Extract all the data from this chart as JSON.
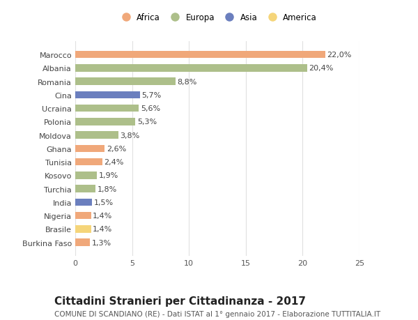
{
  "countries": [
    "Burkina Faso",
    "Brasile",
    "Nigeria",
    "India",
    "Turchia",
    "Kosovo",
    "Tunisia",
    "Ghana",
    "Moldova",
    "Polonia",
    "Ucraina",
    "Cina",
    "Romania",
    "Albania",
    "Marocco"
  ],
  "values": [
    1.3,
    1.4,
    1.4,
    1.5,
    1.8,
    1.9,
    2.4,
    2.6,
    3.8,
    5.3,
    5.6,
    5.7,
    8.8,
    20.4,
    22.0
  ],
  "labels": [
    "1,3%",
    "1,4%",
    "1,4%",
    "1,5%",
    "1,8%",
    "1,9%",
    "2,4%",
    "2,6%",
    "3,8%",
    "5,3%",
    "5,6%",
    "5,7%",
    "8,8%",
    "20,4%",
    "22,0%"
  ],
  "continents": [
    "Africa",
    "America",
    "Africa",
    "Asia",
    "Europa",
    "Europa",
    "Africa",
    "Africa",
    "Europa",
    "Europa",
    "Europa",
    "Asia",
    "Europa",
    "Europa",
    "Africa"
  ],
  "colors": {
    "Africa": "#F0A87A",
    "Europa": "#ADBF8A",
    "Asia": "#6B7FBE",
    "America": "#F5D57A"
  },
  "legend_order": [
    "Africa",
    "Europa",
    "Asia",
    "America"
  ],
  "title": "Cittadini Stranieri per Cittadinanza - 2017",
  "subtitle": "COMUNE DI SCANDIANO (RE) - Dati ISTAT al 1° gennaio 2017 - Elaborazione TUTTITALIA.IT",
  "xlim": [
    0,
    25
  ],
  "xticks": [
    0,
    5,
    10,
    15,
    20,
    25
  ],
  "background_color": "#ffffff",
  "grid_color": "#e0e0e0",
  "bar_height": 0.55,
  "label_fontsize": 8,
  "tick_fontsize": 8,
  "title_fontsize": 11,
  "subtitle_fontsize": 7.5
}
